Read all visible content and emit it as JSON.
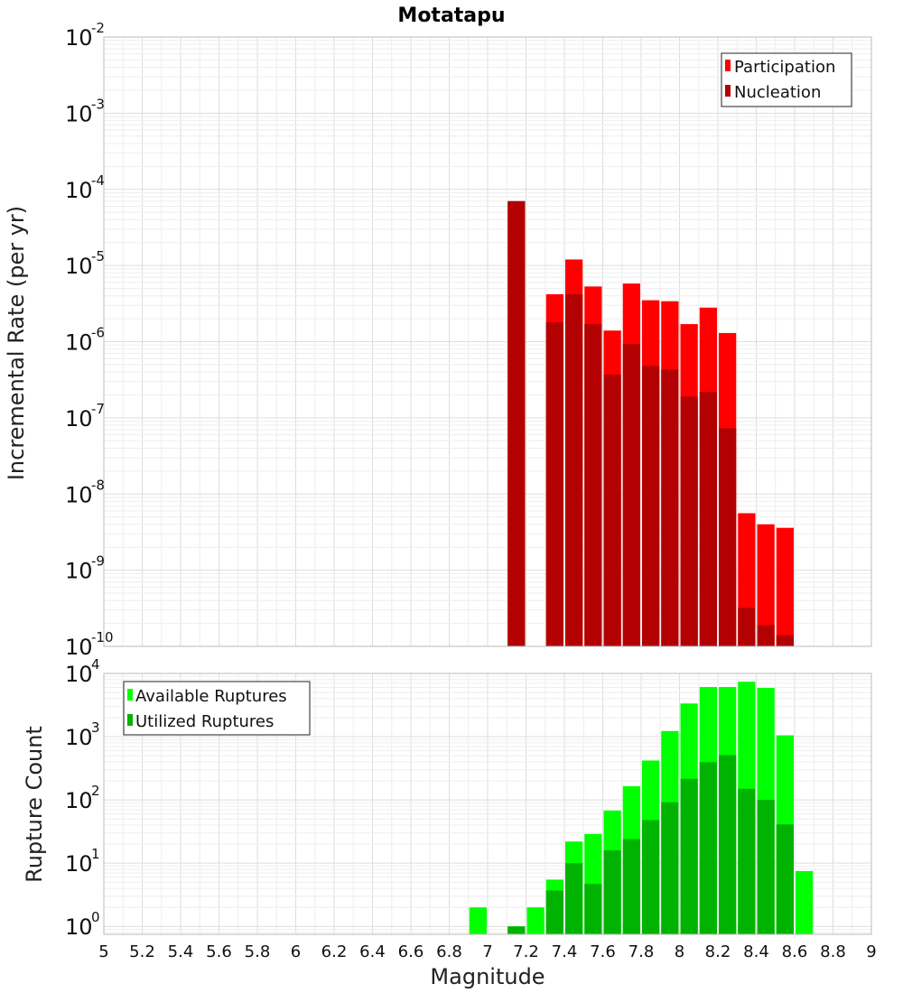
{
  "chart_data": [
    {
      "type": "bar",
      "title": "Motatapu",
      "xlabel": "",
      "ylabel": "Incremental Rate (per yr)",
      "yscale": "log",
      "ylim": [
        1e-10,
        0.01
      ],
      "xlim": [
        5,
        9
      ],
      "y_ticks": [
        {
          "base": "10",
          "exp": "-10"
        },
        {
          "base": "10",
          "exp": "-9"
        },
        {
          "base": "10",
          "exp": "-8"
        },
        {
          "base": "10",
          "exp": "-7"
        },
        {
          "base": "10",
          "exp": "-6"
        },
        {
          "base": "10",
          "exp": "-5"
        },
        {
          "base": "10",
          "exp": "-4"
        },
        {
          "base": "10",
          "exp": "-3"
        },
        {
          "base": "10",
          "exp": "-2"
        }
      ],
      "legend_position": "top-right",
      "x": [
        7.1,
        7.3,
        7.4,
        7.5,
        7.6,
        7.7,
        7.8,
        7.9,
        8.0,
        8.1,
        8.2,
        8.3,
        8.4,
        8.5
      ],
      "series": [
        {
          "name": "Participation",
          "color": "#ff0000",
          "values": [
            7e-05,
            4.2e-06,
            1.2e-05,
            5.3e-06,
            1.4e-06,
            5.8e-06,
            3.5e-06,
            3.4e-06,
            1.7e-06,
            2.8e-06,
            1.3e-06,
            5.6e-09,
            4e-09,
            3.6e-09
          ]
        },
        {
          "name": "Nucleation",
          "color": "#b30000",
          "values": [
            7e-05,
            1.8e-06,
            4.2e-06,
            1.7e-06,
            3.7e-07,
            9.3e-07,
            4.8e-07,
            4.3e-07,
            1.9e-07,
            2.2e-07,
            7.3e-08,
            3.2e-10,
            1.9e-10,
            1.4e-10
          ]
        }
      ]
    },
    {
      "type": "bar",
      "title": "",
      "xlabel": "Magnitude",
      "ylabel": "Rupture Count",
      "yscale": "log",
      "ylim": [
        0.75,
        10000
      ],
      "xlim": [
        5,
        9
      ],
      "x_ticks": [
        "5",
        "5.2",
        "5.4",
        "5.6",
        "5.8",
        "6",
        "6.2",
        "6.4",
        "6.6",
        "6.8",
        "7",
        "7.2",
        "7.4",
        "7.6",
        "7.8",
        "8",
        "8.2",
        "8.4",
        "8.6",
        "8.8",
        "9"
      ],
      "y_ticks": [
        {
          "base": "10",
          "exp": "0"
        },
        {
          "base": "10",
          "exp": "1"
        },
        {
          "base": "10",
          "exp": "2"
        },
        {
          "base": "10",
          "exp": "3"
        },
        {
          "base": "10",
          "exp": "4"
        }
      ],
      "legend_position": "top-left",
      "x": [
        6.9,
        7.1,
        7.2,
        7.3,
        7.4,
        7.5,
        7.6,
        7.7,
        7.8,
        7.9,
        8.0,
        8.1,
        8.2,
        8.3,
        8.4,
        8.5,
        8.6
      ],
      "series": [
        {
          "name": "Available Ruptures",
          "color": "#00ff00",
          "values": [
            2,
            1,
            2,
            5.5,
            22,
            29,
            68,
            165,
            420,
            1230,
            3350,
            6100,
            6100,
            7400,
            5900,
            1050,
            7.5
          ]
        },
        {
          "name": "Utilized Ruptures",
          "color": "#00b300",
          "values": [
            0,
            1,
            0,
            3.7,
            10,
            4.7,
            16,
            24,
            48,
            92,
            215,
            395,
            510,
            150,
            100,
            41,
            0
          ]
        }
      ]
    }
  ]
}
